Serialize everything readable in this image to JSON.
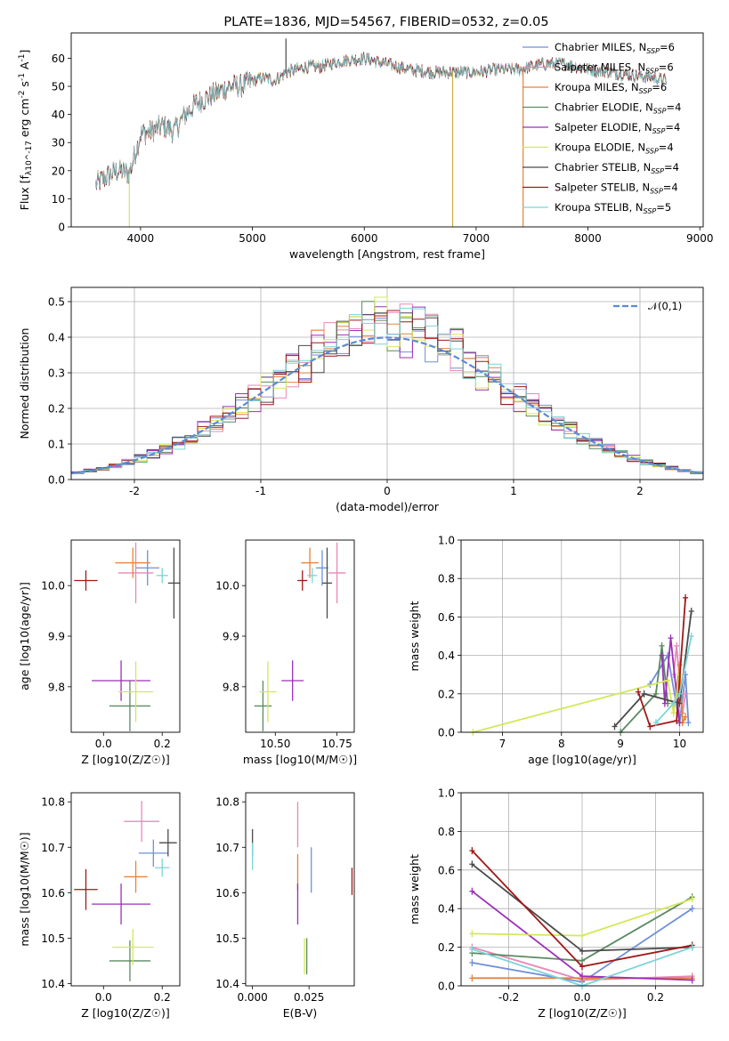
{
  "figure_title": "PLATE=1836, MJD=54567, FIBERID=0532, z=0.05",
  "models": [
    {
      "name": "Chabrier MILES",
      "nssp": "6",
      "color": "#6f8fd8"
    },
    {
      "name": "Salpeter MILES",
      "nssp": "6",
      "color": "#e888b8"
    },
    {
      "name": "Kroupa MILES",
      "nssp": "6",
      "color": "#e8823a"
    },
    {
      "name": "Chabrier ELODIE",
      "nssp": "4",
      "color": "#5c8a62"
    },
    {
      "name": "Salpeter ELODIE",
      "nssp": "4",
      "color": "#9b30b8"
    },
    {
      "name": "Kroupa ELODIE",
      "nssp": "4",
      "color": "#d4e85a"
    },
    {
      "name": "Chabrier STELIB",
      "nssp": "4",
      "color": "#4a4a4a"
    },
    {
      "name": "Salpeter STELIB",
      "nssp": "4",
      "color": "#a01818"
    },
    {
      "name": "Kroupa STELIB",
      "nssp": "5",
      "color": "#7dd4d8"
    }
  ],
  "chart_data": [
    {
      "type": "line",
      "id": "spectrum",
      "xlabel": "wavelength [Angstrom, rest frame]",
      "ylabel": "Flux [f_λ10^-17 erg cm^-2 s^-1 A^-1]",
      "xlim": [
        3380,
        9030
      ],
      "ylim": [
        0,
        69
      ],
      "xticks": [
        4000,
        5000,
        6000,
        7000,
        8000,
        9000
      ],
      "yticks": [
        0,
        10,
        20,
        30,
        40,
        50,
        60
      ],
      "legend_position": "top-right",
      "grid": false,
      "continuum": {
        "x": [
          3600,
          3700,
          3800,
          3900,
          3950,
          4000,
          4100,
          4200,
          4300,
          4400,
          4500,
          4600,
          4800,
          4900,
          5000,
          5100,
          5200,
          5300,
          5400,
          5500,
          5600,
          5800,
          6000,
          6200,
          6400,
          6600,
          6800,
          7000,
          7200,
          7400,
          7600,
          7800,
          8000,
          8200,
          8400,
          8600,
          8700
        ],
        "y": [
          15,
          18,
          20,
          19,
          26,
          33,
          34,
          36,
          34,
          40,
          44,
          46,
          50,
          50,
          52,
          53,
          52,
          55,
          56,
          57,
          57,
          59,
          60,
          58,
          56,
          55,
          55,
          55,
          56,
          56,
          58,
          58,
          56,
          55,
          54,
          53,
          52
        ]
      },
      "spikes": [
        {
          "x": 3900,
          "y_low": 0,
          "color": "#d4e85a"
        },
        {
          "x": 6790,
          "y_low": 0,
          "color": "#c6b040"
        },
        {
          "x": 7420,
          "y_low": 0,
          "color": "#e8823a"
        },
        {
          "x": 5300,
          "y_high": 67,
          "color": "#4a4a4a"
        }
      ]
    },
    {
      "type": "histogram",
      "id": "residuals",
      "xlabel": "(data-model)/error",
      "ylabel": "Normed distribution",
      "xlim": [
        -2.5,
        2.5
      ],
      "ylim": [
        0,
        0.54
      ],
      "xticks": [
        -2,
        -1,
        0,
        1,
        2
      ],
      "yticks": [
        0.0,
        0.1,
        0.2,
        0.3,
        0.4,
        0.5
      ],
      "grid": true,
      "reference_curve": {
        "label": "𝒩(0,1)",
        "style": "dashed",
        "color": "#5b8ad6"
      },
      "bin_width": 0.1
    },
    {
      "type": "scatter",
      "id": "age-vs-Z",
      "xlabel": "Z [log10(Z/Z☉)]",
      "ylabel": "age  [log10(age/yr)]",
      "xlim": [
        -0.11,
        0.26
      ],
      "ylim": [
        9.71,
        10.09
      ],
      "xticks": [
        0.0,
        0.2
      ],
      "yticks": [
        9.8,
        9.9,
        10.0
      ],
      "points": [
        {
          "model": 0,
          "x": 0.15,
          "y": 10.035,
          "xerr": 0.04,
          "yerr": 0.035
        },
        {
          "model": 1,
          "x": 0.11,
          "y": 10.025,
          "xerr": 0.06,
          "yerr": 0.06
        },
        {
          "model": 2,
          "x": 0.1,
          "y": 10.045,
          "xerr": 0.06,
          "yerr": 0.03
        },
        {
          "model": 3,
          "x": 0.09,
          "y": 9.762,
          "xerr": 0.07,
          "yerr": 0.05
        },
        {
          "model": 4,
          "x": 0.06,
          "y": 9.812,
          "xerr": 0.1,
          "yerr": 0.04
        },
        {
          "model": 5,
          "x": 0.11,
          "y": 9.79,
          "xerr": 0.06,
          "yerr": 0.06
        },
        {
          "model": 6,
          "x": 0.24,
          "y": 10.005,
          "xerr": 0.02,
          "yerr": 0.07
        },
        {
          "model": 7,
          "x": -0.06,
          "y": 10.01,
          "xerr": 0.04,
          "yerr": 0.02
        },
        {
          "model": 8,
          "x": 0.2,
          "y": 10.02,
          "xerr": 0.02,
          "yerr": 0.015
        }
      ]
    },
    {
      "type": "scatter",
      "id": "age-vs-mass",
      "xlabel": "mass [log10(M/M☉)]",
      "ylabel": "",
      "xlim": [
        10.38,
        10.82
      ],
      "ylim": [
        9.71,
        10.09
      ],
      "xticks": [
        10.5,
        10.75
      ],
      "yticks": [
        9.8,
        9.9,
        10.0
      ],
      "points": [
        {
          "model": 0,
          "x": 10.69,
          "y": 10.035,
          "xerr": 0.025,
          "yerr": 0.035
        },
        {
          "model": 1,
          "x": 10.75,
          "y": 10.025,
          "xerr": 0.035,
          "yerr": 0.06
        },
        {
          "model": 2,
          "x": 10.64,
          "y": 10.045,
          "xerr": 0.035,
          "yerr": 0.03
        },
        {
          "model": 3,
          "x": 10.45,
          "y": 9.762,
          "xerr": 0.035,
          "yerr": 0.05
        },
        {
          "model": 4,
          "x": 10.57,
          "y": 9.812,
          "xerr": 0.045,
          "yerr": 0.04
        },
        {
          "model": 5,
          "x": 10.47,
          "y": 9.79,
          "xerr": 0.035,
          "yerr": 0.06
        },
        {
          "model": 6,
          "x": 10.71,
          "y": 10.005,
          "xerr": 0.02,
          "yerr": 0.07
        },
        {
          "model": 7,
          "x": 10.61,
          "y": 10.01,
          "xerr": 0.02,
          "yerr": 0.02
        },
        {
          "model": 8,
          "x": 10.65,
          "y": 10.02,
          "xerr": 0.02,
          "yerr": 0.015
        }
      ]
    },
    {
      "type": "line",
      "id": "weight-vs-age",
      "xlabel": "age  [log10(age/yr)]",
      "ylabel": "mass weight",
      "xlim": [
        6.3,
        10.4
      ],
      "ylim": [
        0,
        1.0
      ],
      "xticks": [
        7,
        8,
        9,
        10
      ],
      "yticks": [
        0.0,
        0.2,
        0.4,
        0.6,
        0.8,
        1.0
      ],
      "grid": true,
      "series": [
        {
          "model": 0,
          "x": [
            9.5,
            9.8,
            10.0,
            10.1,
            10.15
          ],
          "y": [
            0.25,
            0.4,
            0.05,
            0.3,
            0.05
          ]
        },
        {
          "model": 1,
          "x": [
            9.9,
            9.95,
            10.05,
            10.1
          ],
          "y": [
            0.3,
            0.45,
            0.1,
            0.2
          ]
        },
        {
          "model": 2,
          "x": [
            9.9,
            10.0,
            10.05,
            10.1
          ],
          "y": [
            0.1,
            0.35,
            0.05,
            0.08
          ]
        },
        {
          "model": 3,
          "x": [
            9.0,
            9.6,
            9.7,
            9.8
          ],
          "y": [
            0.0,
            0.2,
            0.45,
            0.15
          ]
        },
        {
          "model": 4,
          "x": [
            9.7,
            9.75,
            9.85,
            10.0
          ],
          "y": [
            0.4,
            0.15,
            0.49,
            0.05
          ]
        },
        {
          "model": 5,
          "x": [
            6.5,
            9.8,
            9.9,
            10.0
          ],
          "y": [
            0.0,
            0.27,
            0.1,
            0.3
          ]
        },
        {
          "model": 6,
          "x": [
            8.9,
            9.4,
            10.0,
            10.2
          ],
          "y": [
            0.03,
            0.2,
            0.15,
            0.63
          ]
        },
        {
          "model": 7,
          "x": [
            9.3,
            9.5,
            9.95,
            10.1
          ],
          "y": [
            0.21,
            0.03,
            0.06,
            0.7
          ]
        },
        {
          "model": 8,
          "x": [
            9.6,
            9.9,
            10.0,
            10.2
          ],
          "y": [
            0.05,
            0.15,
            0.2,
            0.5
          ]
        }
      ]
    },
    {
      "type": "scatter",
      "id": "mass-vs-Z",
      "xlabel": "Z [log10(Z/Z☉)]",
      "ylabel": "mass [log10(M/M☉)]",
      "xlim": [
        -0.11,
        0.26
      ],
      "ylim": [
        10.395,
        10.82
      ],
      "xticks": [
        0.0,
        0.2
      ],
      "yticks": [
        10.4,
        10.5,
        10.6,
        10.7,
        10.8
      ],
      "points": [
        {
          "model": 0,
          "x": 0.17,
          "y": 10.687,
          "xerr": 0.05,
          "yerr": 0.03
        },
        {
          "model": 1,
          "x": 0.13,
          "y": 10.757,
          "xerr": 0.06,
          "yerr": 0.045
        },
        {
          "model": 2,
          "x": 0.11,
          "y": 10.635,
          "xerr": 0.04,
          "yerr": 0.035
        },
        {
          "model": 3,
          "x": 0.09,
          "y": 10.45,
          "xerr": 0.07,
          "yerr": 0.045
        },
        {
          "model": 4,
          "x": 0.06,
          "y": 10.575,
          "xerr": 0.1,
          "yerr": 0.045
        },
        {
          "model": 5,
          "x": 0.1,
          "y": 10.48,
          "xerr": 0.07,
          "yerr": 0.04
        },
        {
          "model": 6,
          "x": 0.22,
          "y": 10.71,
          "xerr": 0.03,
          "yerr": 0.03
        },
        {
          "model": 7,
          "x": -0.06,
          "y": 10.607,
          "xerr": 0.04,
          "yerr": 0.045
        },
        {
          "model": 8,
          "x": 0.2,
          "y": 10.655,
          "xerr": 0.025,
          "yerr": 0.02
        }
      ]
    },
    {
      "type": "scatter",
      "id": "mass-vs-EBV",
      "xlabel": "E(B-V)",
      "ylabel": "",
      "xlim": [
        -0.003,
        0.045
      ],
      "ylim": [
        10.395,
        10.82
      ],
      "xticks": [
        0.0,
        0.025
      ],
      "xtick_labels": [
        "0.000",
        "0.025"
      ],
      "yticks": [
        10.4,
        10.5,
        10.6,
        10.7,
        10.8
      ],
      "points": [
        {
          "model": 0,
          "x": 0.026,
          "y": 10.65,
          "xerr": 0,
          "yerr": 0.05
        },
        {
          "model": 1,
          "x": 0.02,
          "y": 10.75,
          "xerr": 0,
          "yerr": 0.05
        },
        {
          "model": 2,
          "x": 0.02,
          "y": 10.645,
          "xerr": 0,
          "yerr": 0.04
        },
        {
          "model": 3,
          "x": 0.024,
          "y": 10.46,
          "xerr": 0,
          "yerr": 0.04
        },
        {
          "model": 4,
          "x": 0.02,
          "y": 10.575,
          "xerr": 0,
          "yerr": 0.045
        },
        {
          "model": 5,
          "x": 0.023,
          "y": 10.46,
          "xerr": 0,
          "yerr": 0.04
        },
        {
          "model": 6,
          "x": 0.0,
          "y": 10.71,
          "xerr": 0,
          "yerr": 0.03
        },
        {
          "model": 7,
          "x": 0.044,
          "y": 10.625,
          "xerr": 0,
          "yerr": 0.03
        },
        {
          "model": 8,
          "x": 0.0,
          "y": 10.68,
          "xerr": 0,
          "yerr": 0.03
        }
      ]
    },
    {
      "type": "line",
      "id": "weight-vs-Z",
      "xlabel": "Z [log10(Z/Z☉)]",
      "ylabel": "mass weight",
      "xlim": [
        -0.33,
        0.33
      ],
      "ylim": [
        0,
        1.0
      ],
      "xticks": [
        -0.2,
        0.0,
        0.2
      ],
      "yticks": [
        0.0,
        0.2,
        0.4,
        0.6,
        0.8,
        1.0
      ],
      "grid": true,
      "series": [
        {
          "model": 0,
          "x": [
            -0.3,
            0.0,
            0.3
          ],
          "y": [
            0.12,
            0.02,
            0.4
          ]
        },
        {
          "model": 1,
          "x": [
            -0.3,
            0.0,
            0.3
          ],
          "y": [
            0.2,
            0.03,
            0.05
          ]
        },
        {
          "model": 2,
          "x": [
            -0.3,
            0.0,
            0.3
          ],
          "y": [
            0.04,
            0.04,
            0.04
          ]
        },
        {
          "model": 3,
          "x": [
            -0.3,
            0.0,
            0.3
          ],
          "y": [
            0.17,
            0.13,
            0.46
          ]
        },
        {
          "model": 4,
          "x": [
            -0.3,
            0.0,
            0.3
          ],
          "y": [
            0.49,
            0.05,
            0.03
          ]
        },
        {
          "model": 5,
          "x": [
            -0.3,
            0.0,
            0.3
          ],
          "y": [
            0.27,
            0.26,
            0.45
          ]
        },
        {
          "model": 6,
          "x": [
            -0.3,
            0.0,
            0.3
          ],
          "y": [
            0.63,
            0.18,
            0.2
          ]
        },
        {
          "model": 7,
          "x": [
            -0.3,
            0.0,
            0.3
          ],
          "y": [
            0.7,
            0.1,
            0.21
          ]
        },
        {
          "model": 8,
          "x": [
            -0.3,
            0.0,
            0.3
          ],
          "y": [
            0.19,
            0.0,
            0.2
          ]
        }
      ]
    }
  ]
}
